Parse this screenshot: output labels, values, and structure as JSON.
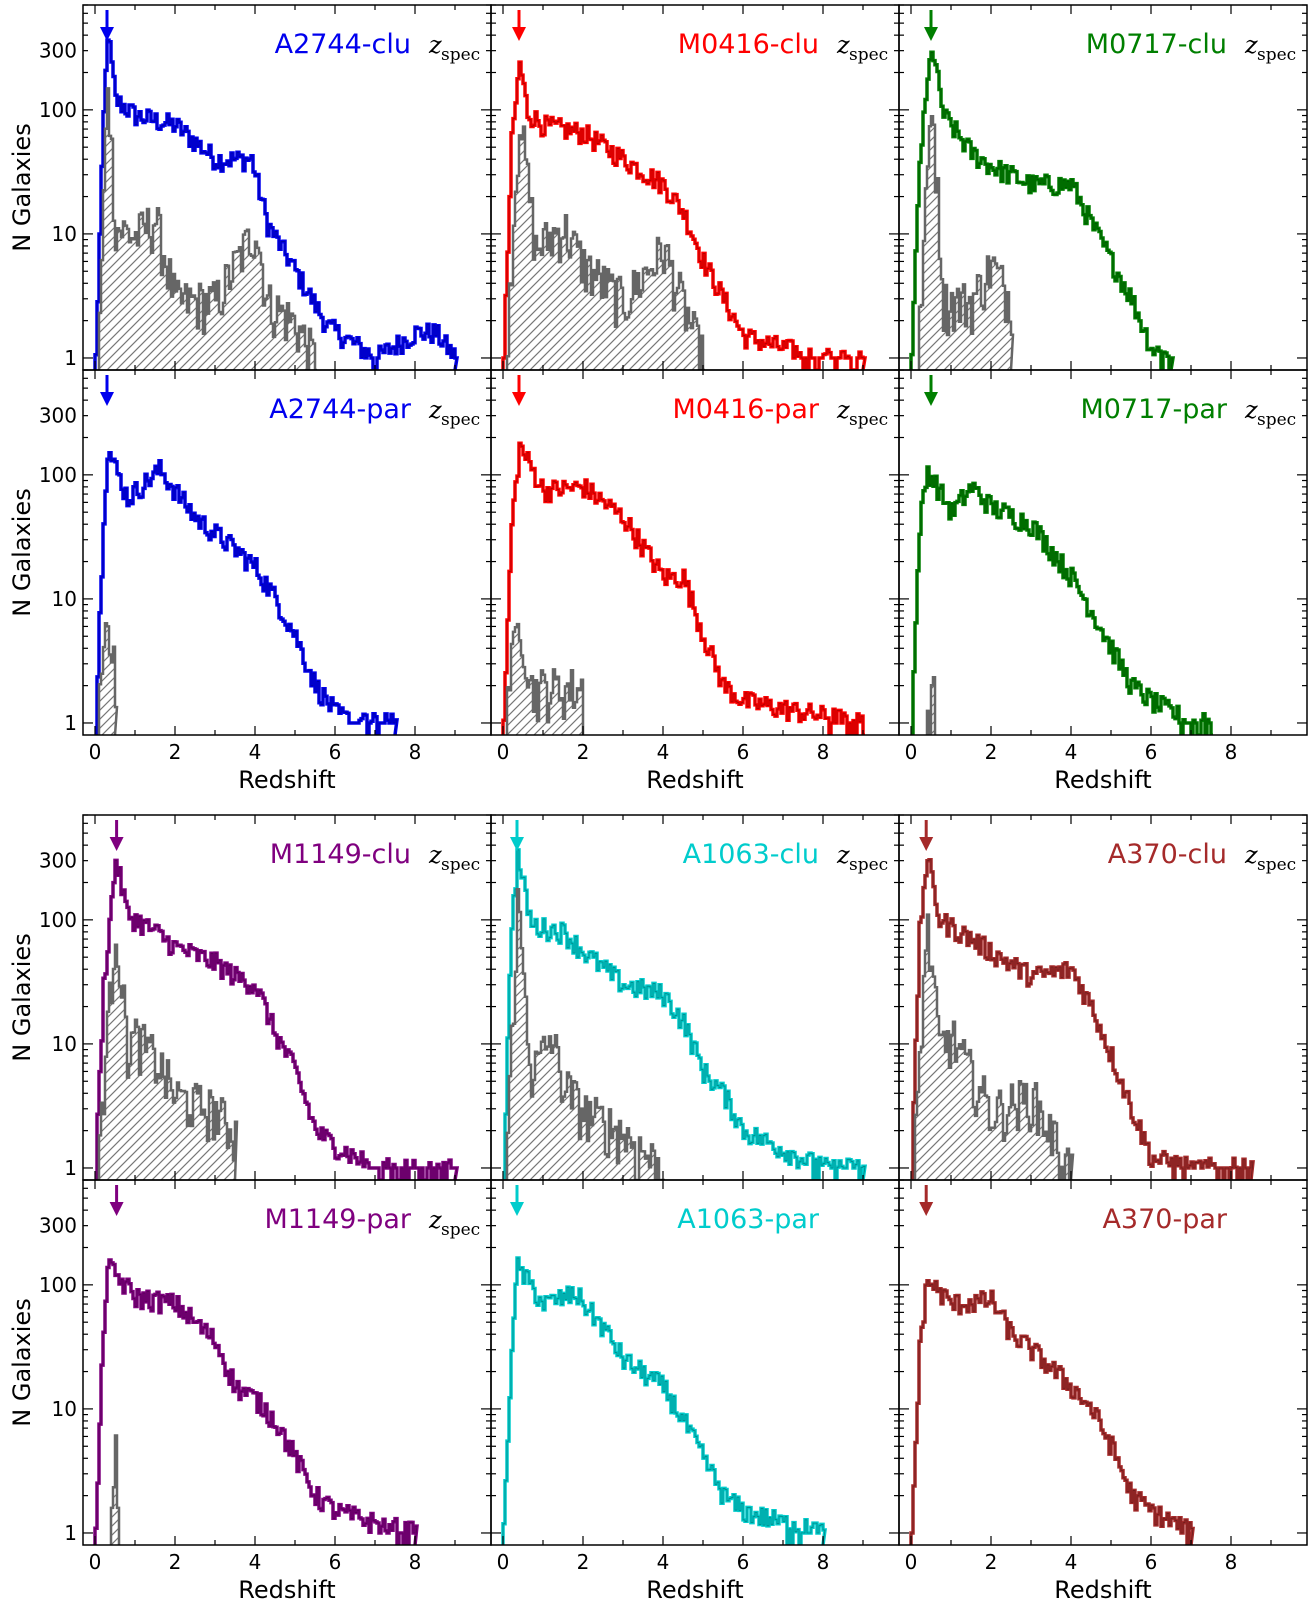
{
  "figure": {
    "x_axis_label": "Redshift",
    "y_axis_label": "N Galaxies",
    "zspec_z": "z",
    "zspec_sub": "spec"
  },
  "chart_data": [
    {
      "type": "area",
      "label": "A2744-clu",
      "color": "#0000ee",
      "zspec": true,
      "arrow_z": 0.3,
      "xlim": [
        -0.3,
        9.9
      ],
      "ylim": [
        0.8,
        700
      ],
      "y_scale": "log",
      "xticks": [
        0,
        2,
        4,
        6,
        8
      ],
      "yticks": [
        1,
        10,
        100,
        300
      ],
      "histogram": {
        "x": [
          0,
          0.2,
          0.3,
          0.5,
          1,
          2,
          3,
          3.9,
          4.3,
          5,
          5.8,
          7,
          8,
          8.5,
          9
        ],
        "y": [
          1,
          90,
          420,
          120,
          90,
          75,
          40,
          40,
          12,
          5,
          1.8,
          1,
          1.6,
          1.6,
          1
        ]
      },
      "spec_histogram": {
        "x": [
          0.1,
          0.3,
          0.5,
          1,
          1.5,
          2,
          3,
          4,
          4.3,
          5,
          5.5
        ],
        "y": [
          2,
          200,
          12,
          10,
          14,
          3,
          3,
          12,
          3,
          2,
          1
        ]
      }
    },
    {
      "type": "area",
      "label": "M0416-clu",
      "color": "#ff0000",
      "zspec": true,
      "arrow_z": 0.4,
      "xlim": [
        -0.3,
        9.9
      ],
      "ylim": [
        0.8,
        700
      ],
      "y_scale": "log",
      "xticks": [
        0,
        2,
        4,
        6,
        8
      ],
      "yticks": [
        1,
        10,
        100,
        300
      ],
      "histogram": {
        "x": [
          0,
          0.2,
          0.4,
          0.6,
          1,
          2,
          3,
          4,
          4.5,
          5,
          5.5,
          6,
          7,
          8,
          9
        ],
        "y": [
          1,
          55,
          240,
          95,
          75,
          65,
          40,
          25,
          15,
          6,
          3,
          1.5,
          1.2,
          1,
          1
        ]
      },
      "spec_histogram": {
        "x": [
          0.1,
          0.4,
          0.8,
          1.5,
          2,
          3,
          4,
          5
        ],
        "y": [
          2,
          100,
          8,
          12,
          6,
          3,
          8,
          1
        ]
      }
    },
    {
      "type": "area",
      "label": "M0717-clu",
      "color": "#007f00",
      "zspec": true,
      "arrow_z": 0.5,
      "xlim": [
        -0.3,
        9.9
      ],
      "ylim": [
        0.8,
        700
      ],
      "y_scale": "log",
      "xticks": [
        0,
        2,
        4,
        6,
        8
      ],
      "yticks": [
        1,
        10,
        100,
        300
      ],
      "histogram": {
        "x": [
          0,
          0.2,
          0.5,
          0.8,
          1.5,
          2,
          3,
          4,
          4.5,
          5,
          5.5,
          6,
          6.5
        ],
        "y": [
          1,
          40,
          330,
          90,
          45,
          35,
          25,
          25,
          12,
          6,
          3,
          1.2,
          1
        ]
      },
      "spec_histogram": {
        "x": [
          0.2,
          0.5,
          0.8,
          1.5,
          2,
          2.5
        ],
        "y": [
          2,
          150,
          3,
          3,
          6,
          3
        ]
      }
    },
    {
      "type": "area",
      "label": "A2744-par",
      "color": "#0000ee",
      "zspec": true,
      "arrow_z": 0.3,
      "xlim": [
        -0.3,
        9.9
      ],
      "ylim": [
        0.8,
        700
      ],
      "y_scale": "log",
      "xticks": [
        0,
        2,
        4,
        6,
        8
      ],
      "yticks": [
        1,
        10,
        100,
        300
      ],
      "histogram": {
        "x": [
          0,
          0.2,
          0.3,
          0.8,
          1.6,
          2.5,
          3.5,
          4,
          4.5,
          5,
          5.5,
          6,
          6.5,
          7.5
        ],
        "y": [
          1,
          50,
          160,
          65,
          110,
          45,
          25,
          18,
          10,
          5,
          2,
          1.2,
          1,
          1
        ]
      },
      "spec_histogram": {
        "x": [
          0.1,
          0.3,
          0.5
        ],
        "y": [
          2,
          10,
          2
        ]
      }
    },
    {
      "type": "area",
      "label": "M0416-par",
      "color": "#ff0000",
      "zspec": true,
      "arrow_z": 0.4,
      "xlim": [
        -0.3,
        9.9
      ],
      "ylim": [
        0.8,
        700
      ],
      "y_scale": "log",
      "xticks": [
        0,
        2,
        4,
        6,
        8
      ],
      "yticks": [
        1,
        10,
        100,
        300
      ],
      "histogram": {
        "x": [
          0,
          0.2,
          0.4,
          1,
          2,
          3,
          4,
          4.5,
          5,
          5.5,
          6,
          7,
          9
        ],
        "y": [
          1,
          40,
          170,
          75,
          80,
          45,
          15,
          15,
          5,
          2,
          1.5,
          1.3,
          1
        ]
      },
      "spec_histogram": {
        "x": [
          0.1,
          0.4,
          0.7,
          2
        ],
        "y": [
          2,
          8,
          2,
          2
        ]
      }
    },
    {
      "type": "area",
      "label": "M0717-par",
      "color": "#007f00",
      "zspec": true,
      "arrow_z": 0.5,
      "xlim": [
        -0.3,
        9.9
      ],
      "ylim": [
        0.8,
        700
      ],
      "y_scale": "log",
      "xticks": [
        0,
        2,
        4,
        6,
        8
      ],
      "yticks": [
        1,
        10,
        100,
        300
      ],
      "histogram": {
        "x": [
          0,
          0.2,
          0.4,
          1,
          1.5,
          2,
          3,
          4,
          4.5,
          5,
          5.5,
          6,
          7,
          7.5
        ],
        "y": [
          1,
          40,
          110,
          50,
          80,
          55,
          40,
          15,
          8,
          4,
          2,
          1.5,
          1,
          1
        ]
      },
      "spec_histogram": {
        "x": [
          0.4,
          0.5,
          0.6
        ],
        "y": [
          1,
          3,
          1
        ]
      }
    },
    {
      "type": "area",
      "label": "M1149-clu",
      "color": "#7f007f",
      "zspec": true,
      "arrow_z": 0.54,
      "xlim": [
        -0.3,
        9.9
      ],
      "ylim": [
        0.8,
        700
      ],
      "y_scale": "log",
      "xticks": [
        0,
        2,
        4,
        6,
        8
      ],
      "yticks": [
        1,
        10,
        100,
        300
      ],
      "histogram": {
        "x": [
          0,
          0.2,
          0.5,
          0.8,
          1.5,
          2,
          3,
          3.5,
          4,
          4.5,
          5,
          5.5,
          6,
          7,
          9
        ],
        "y": [
          1,
          30,
          310,
          110,
          80,
          60,
          45,
          35,
          30,
          12,
          6,
          2,
          1.5,
          1,
          1
        ]
      },
      "spec_histogram": {
        "x": [
          0.1,
          0.5,
          0.8,
          1,
          1.5,
          2,
          3,
          3.5
        ],
        "y": [
          2,
          100,
          10,
          12,
          8,
          4,
          3,
          2
        ]
      }
    },
    {
      "type": "area",
      "label": "A1063-clu",
      "color": "#00cccc",
      "zspec": true,
      "arrow_z": 0.35,
      "xlim": [
        -0.3,
        9.9
      ],
      "ylim": [
        0.8,
        700
      ],
      "y_scale": "log",
      "xticks": [
        0,
        2,
        4,
        6,
        8
      ],
      "yticks": [
        1,
        10,
        100,
        300
      ],
      "histogram": {
        "x": [
          0,
          0.2,
          0.35,
          0.7,
          1.5,
          2,
          3,
          4,
          4.5,
          5,
          5.5,
          6,
          7,
          8,
          9
        ],
        "y": [
          1,
          100,
          320,
          90,
          80,
          55,
          30,
          25,
          15,
          6,
          4,
          2,
          1.4,
          1,
          1
        ]
      },
      "spec_histogram": {
        "x": [
          0.1,
          0.35,
          0.7,
          1.2,
          1.5,
          2,
          3,
          4
        ],
        "y": [
          2,
          150,
          6,
          12,
          5,
          3,
          2,
          1
        ]
      }
    },
    {
      "type": "area",
      "label": "A370-clu",
      "color": "#a52a2a",
      "zspec": true,
      "arrow_z": 0.38,
      "xlim": [
        -0.3,
        9.9
      ],
      "ylim": [
        0.8,
        700
      ],
      "y_scale": "log",
      "xticks": [
        0,
        2,
        4,
        6,
        8
      ],
      "yticks": [
        1,
        10,
        100,
        300
      ],
      "histogram": {
        "x": [
          0,
          0.2,
          0.38,
          0.7,
          1.5,
          2,
          3,
          4,
          4.5,
          5,
          5.5,
          6,
          7,
          8,
          8.5
        ],
        "y": [
          1,
          80,
          330,
          100,
          70,
          55,
          35,
          40,
          20,
          8,
          3,
          1.2,
          1,
          1,
          1
        ]
      },
      "spec_histogram": {
        "x": [
          0.1,
          0.38,
          0.7,
          1,
          1.5,
          2,
          3,
          4
        ],
        "y": [
          2,
          100,
          10,
          12,
          6,
          3,
          4,
          1
        ]
      }
    },
    {
      "type": "area",
      "label": "M1149-par",
      "color": "#7f007f",
      "zspec": true,
      "arrow_z": 0.54,
      "xlim": [
        -0.3,
        9.9
      ],
      "ylim": [
        0.8,
        700
      ],
      "y_scale": "log",
      "xticks": [
        0,
        2,
        4,
        6,
        8
      ],
      "yticks": [
        1,
        10,
        100,
        300
      ],
      "histogram": {
        "x": [
          0,
          0.2,
          0.3,
          1,
          2,
          3,
          3.5,
          4,
          4.5,
          5,
          5.5,
          6,
          7,
          8
        ],
        "y": [
          1,
          50,
          140,
          80,
          70,
          35,
          15,
          12,
          8,
          4,
          2,
          1.5,
          1.2,
          1
        ]
      },
      "spec_histogram": {
        "x": [
          0.4,
          0.5,
          0.6
        ],
        "y": [
          2,
          5,
          1
        ]
      }
    },
    {
      "type": "area",
      "label": "A1063-par",
      "color": "#00cccc",
      "zspec": false,
      "arrow_z": 0.35,
      "xlim": [
        -0.3,
        9.9
      ],
      "ylim": [
        0.8,
        700
      ],
      "y_scale": "log",
      "xticks": [
        0,
        2,
        4,
        6,
        8
      ],
      "yticks": [
        1,
        10,
        100,
        300
      ],
      "histogram": {
        "x": [
          0,
          0.2,
          0.35,
          1,
          1.8,
          2.5,
          3,
          4,
          4.5,
          5,
          5.5,
          6,
          7,
          8
        ],
        "y": [
          1,
          35,
          140,
          70,
          85,
          45,
          25,
          15,
          8,
          4,
          2,
          1.5,
          1.2,
          1
        ]
      },
      "spec_histogram": {
        "x": [],
        "y": []
      }
    },
    {
      "type": "area",
      "label": "A370-par",
      "color": "#a52a2a",
      "zspec": false,
      "arrow_z": 0.38,
      "xlim": [
        -0.3,
        9.9
      ],
      "ylim": [
        0.8,
        700
      ],
      "y_scale": "log",
      "xticks": [
        0,
        2,
        4,
        6,
        8
      ],
      "yticks": [
        1,
        10,
        100,
        300
      ],
      "histogram": {
        "x": [
          0,
          0.2,
          0.38,
          1,
          2,
          2.5,
          3,
          4,
          4.5,
          5,
          5.5,
          6,
          7
        ],
        "y": [
          1,
          30,
          110,
          70,
          75,
          40,
          30,
          15,
          10,
          5,
          2,
          1.5,
          1
        ]
      },
      "spec_histogram": {
        "x": [],
        "y": []
      }
    }
  ]
}
